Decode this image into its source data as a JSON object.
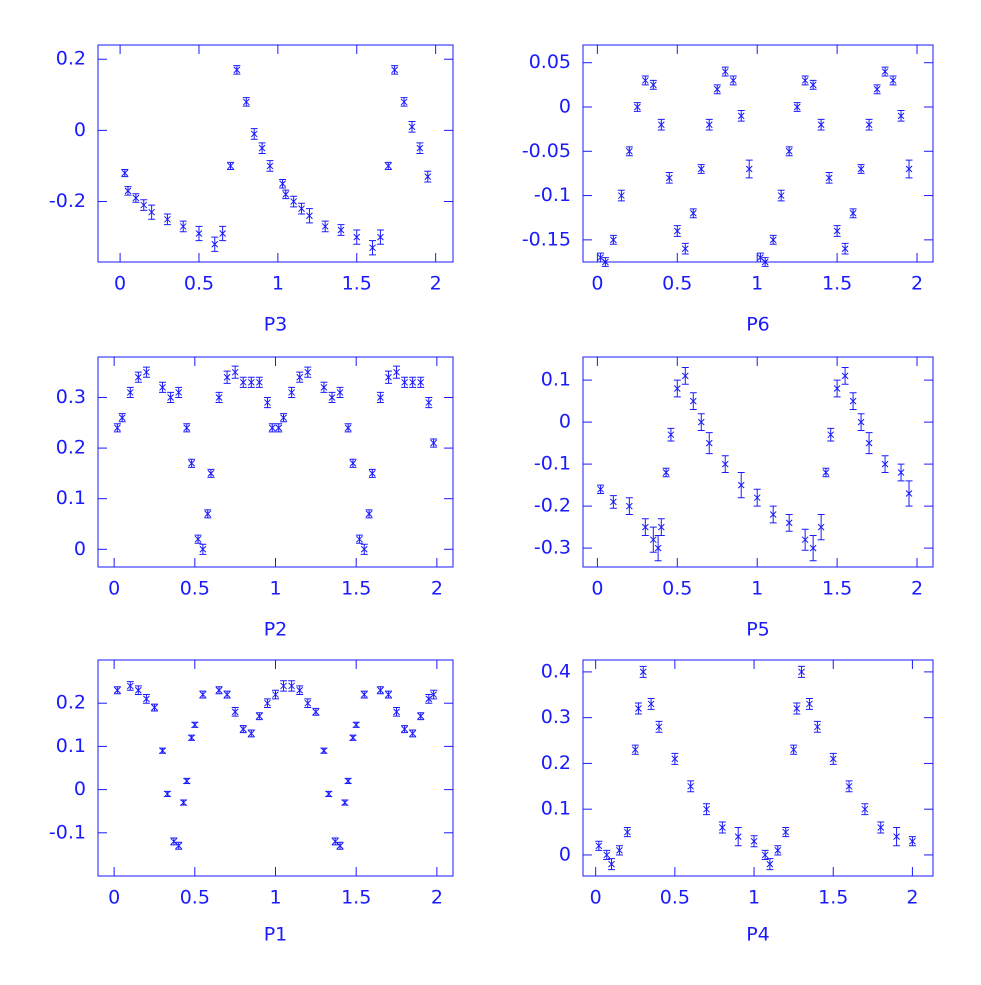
{
  "chart_data": [
    {
      "type": "scatter",
      "x_label": "P3",
      "color": "#1a1aff",
      "x": [
        0.03,
        0.05,
        0.1,
        0.15,
        0.2,
        0.3,
        0.4,
        0.5,
        0.6,
        0.65,
        0.7,
        0.74,
        0.8,
        0.85,
        0.9,
        0.95,
        1.03,
        1.05,
        1.1,
        1.15,
        1.2,
        1.3,
        1.4,
        1.5,
        1.6,
        1.65,
        1.7,
        1.74,
        1.8,
        1.85,
        1.9,
        1.95
      ],
      "values": [
        -0.12,
        -0.17,
        -0.19,
        -0.21,
        -0.23,
        -0.25,
        -0.27,
        -0.29,
        -0.32,
        -0.29,
        -0.1,
        0.17,
        0.08,
        -0.01,
        -0.05,
        -0.1,
        -0.15,
        -0.18,
        -0.2,
        -0.22,
        -0.24,
        -0.27,
        -0.28,
        -0.3,
        -0.33,
        -0.3,
        -0.1,
        0.17,
        0.08,
        0.01,
        -0.05,
        -0.13
      ],
      "errors": [
        0.01,
        0.012,
        0.012,
        0.015,
        0.02,
        0.015,
        0.015,
        0.02,
        0.02,
        0.02,
        0.01,
        0.012,
        0.012,
        0.015,
        0.015,
        0.015,
        0.012,
        0.012,
        0.015,
        0.015,
        0.02,
        0.015,
        0.015,
        0.02,
        0.02,
        0.02,
        0.01,
        0.012,
        0.012,
        0.015,
        0.015,
        0.015
      ],
      "xlim": [
        -0.14,
        2.11
      ],
      "ylim": [
        -0.37,
        0.24
      ],
      "xticks": [
        0,
        0.5,
        1,
        1.5,
        2
      ],
      "yticks": [
        -0.2,
        0,
        0.2
      ]
    },
    {
      "type": "scatter",
      "x_label": "P6",
      "color": "#1a1aff",
      "x": [
        0.02,
        0.05,
        0.1,
        0.15,
        0.2,
        0.25,
        0.3,
        0.35,
        0.4,
        0.45,
        0.5,
        0.55,
        0.6,
        0.65,
        0.7,
        0.75,
        0.8,
        0.85,
        0.9,
        0.95,
        1.02,
        1.05,
        1.1,
        1.15,
        1.2,
        1.25,
        1.3,
        1.35,
        1.4,
        1.45,
        1.5,
        1.55,
        1.6,
        1.65,
        1.7,
        1.75,
        1.8,
        1.85,
        1.9,
        1.95
      ],
      "values": [
        -0.17,
        -0.175,
        -0.15,
        -0.1,
        -0.05,
        0.0,
        0.03,
        0.025,
        -0.02,
        -0.08,
        -0.14,
        -0.16,
        -0.12,
        -0.07,
        -0.02,
        0.02,
        0.04,
        0.03,
        -0.01,
        -0.07,
        -0.17,
        -0.175,
        -0.15,
        -0.1,
        -0.05,
        0.0,
        0.03,
        0.025,
        -0.02,
        -0.08,
        -0.14,
        -0.16,
        -0.12,
        -0.07,
        -0.02,
        0.02,
        0.04,
        0.03,
        -0.01,
        -0.07
      ],
      "errors": [
        0.005,
        0.005,
        0.005,
        0.006,
        0.005,
        0.005,
        0.005,
        0.005,
        0.006,
        0.006,
        0.006,
        0.006,
        0.005,
        0.005,
        0.006,
        0.005,
        0.005,
        0.005,
        0.006,
        0.01,
        0.005,
        0.005,
        0.005,
        0.006,
        0.005,
        0.005,
        0.005,
        0.005,
        0.006,
        0.006,
        0.006,
        0.006,
        0.005,
        0.005,
        0.006,
        0.005,
        0.005,
        0.005,
        0.006,
        0.01
      ],
      "xlim": [
        -0.09,
        2.1
      ],
      "ylim": [
        -0.175,
        0.07
      ],
      "xticks": [
        0,
        0.5,
        1,
        1.5,
        2
      ],
      "yticks": [
        -0.15,
        -0.1,
        -0.05,
        0,
        0.05
      ]
    },
    {
      "type": "scatter",
      "x_label": "P2",
      "color": "#1a1aff",
      "x": [
        0.02,
        0.05,
        0.1,
        0.15,
        0.2,
        0.3,
        0.35,
        0.4,
        0.45,
        0.48,
        0.52,
        0.55,
        0.58,
        0.6,
        0.65,
        0.7,
        0.75,
        0.8,
        0.85,
        0.9,
        0.95,
        0.98,
        1.02,
        1.05,
        1.1,
        1.15,
        1.2,
        1.3,
        1.35,
        1.4,
        1.45,
        1.48,
        1.52,
        1.55,
        1.58,
        1.6,
        1.65,
        1.7,
        1.75,
        1.8,
        1.85,
        1.9,
        1.95,
        1.98
      ],
      "values": [
        0.24,
        0.26,
        0.31,
        0.34,
        0.35,
        0.32,
        0.3,
        0.31,
        0.24,
        0.17,
        0.02,
        0.0,
        0.07,
        0.15,
        0.3,
        0.34,
        0.35,
        0.33,
        0.33,
        0.33,
        0.29,
        0.24,
        0.24,
        0.26,
        0.31,
        0.34,
        0.35,
        0.32,
        0.3,
        0.31,
        0.24,
        0.17,
        0.02,
        0.0,
        0.07,
        0.15,
        0.3,
        0.34,
        0.35,
        0.33,
        0.33,
        0.33,
        0.29,
        0.21
      ],
      "errors": [
        0.008,
        0.008,
        0.01,
        0.01,
        0.01,
        0.01,
        0.01,
        0.01,
        0.008,
        0.008,
        0.008,
        0.01,
        0.008,
        0.008,
        0.01,
        0.012,
        0.012,
        0.01,
        0.01,
        0.01,
        0.01,
        0.008,
        0.008,
        0.008,
        0.01,
        0.01,
        0.01,
        0.01,
        0.01,
        0.01,
        0.008,
        0.008,
        0.008,
        0.01,
        0.008,
        0.008,
        0.01,
        0.012,
        0.012,
        0.01,
        0.01,
        0.01,
        0.01,
        0.008
      ],
      "xlim": [
        -0.1,
        2.1
      ],
      "ylim": [
        -0.035,
        0.38
      ],
      "xticks": [
        0,
        0.5,
        1,
        1.5,
        2
      ],
      "yticks": [
        0,
        0.1,
        0.2,
        0.3
      ]
    },
    {
      "type": "scatter",
      "x_label": "P5",
      "color": "#1a1aff",
      "x": [
        0.02,
        0.1,
        0.2,
        0.3,
        0.35,
        0.38,
        0.4,
        0.43,
        0.46,
        0.5,
        0.55,
        0.6,
        0.65,
        0.7,
        0.8,
        0.9,
        1.0,
        1.1,
        1.2,
        1.3,
        1.35,
        1.4,
        1.43,
        1.46,
        1.5,
        1.55,
        1.6,
        1.65,
        1.7,
        1.8,
        1.9,
        1.95
      ],
      "values": [
        -0.16,
        -0.19,
        -0.2,
        -0.25,
        -0.28,
        -0.3,
        -0.25,
        -0.12,
        -0.03,
        0.08,
        0.11,
        0.05,
        0.0,
        -0.05,
        -0.1,
        -0.15,
        -0.18,
        -0.22,
        -0.24,
        -0.28,
        -0.3,
        -0.25,
        -0.12,
        -0.03,
        0.08,
        0.11,
        0.05,
        0.0,
        -0.05,
        -0.1,
        -0.12,
        -0.17
      ],
      "errors": [
        0.01,
        0.015,
        0.02,
        0.02,
        0.03,
        0.03,
        0.02,
        0.01,
        0.015,
        0.02,
        0.02,
        0.02,
        0.02,
        0.025,
        0.02,
        0.03,
        0.02,
        0.02,
        0.02,
        0.025,
        0.03,
        0.03,
        0.01,
        0.015,
        0.02,
        0.02,
        0.02,
        0.02,
        0.025,
        0.02,
        0.02,
        0.03
      ],
      "xlim": [
        -0.09,
        2.1
      ],
      "ylim": [
        -0.345,
        0.155
      ],
      "xticks": [
        0,
        0.5,
        1,
        1.5,
        2
      ],
      "yticks": [
        -0.3,
        -0.2,
        -0.1,
        0,
        0.1
      ]
    },
    {
      "type": "scatter",
      "x_label": "P1",
      "color": "#1a1aff",
      "x": [
        0.02,
        0.1,
        0.15,
        0.2,
        0.25,
        0.3,
        0.33,
        0.37,
        0.4,
        0.43,
        0.45,
        0.48,
        0.5,
        0.55,
        0.65,
        0.7,
        0.75,
        0.8,
        0.85,
        0.9,
        0.95,
        1.0,
        1.05,
        1.1,
        1.15,
        1.2,
        1.25,
        1.3,
        1.33,
        1.37,
        1.4,
        1.43,
        1.45,
        1.48,
        1.5,
        1.55,
        1.65,
        1.7,
        1.75,
        1.8,
        1.85,
        1.9,
        1.95,
        1.98
      ],
      "values": [
        0.23,
        0.24,
        0.23,
        0.21,
        0.19,
        0.09,
        -0.01,
        -0.12,
        -0.13,
        -0.03,
        0.02,
        0.12,
        0.15,
        0.22,
        0.23,
        0.22,
        0.18,
        0.14,
        0.13,
        0.17,
        0.2,
        0.22,
        0.24,
        0.24,
        0.23,
        0.2,
        0.18,
        0.09,
        -0.01,
        -0.12,
        -0.13,
        -0.03,
        0.02,
        0.12,
        0.15,
        0.22,
        0.23,
        0.22,
        0.18,
        0.14,
        0.13,
        0.17,
        0.21,
        0.22
      ],
      "errors": [
        0.008,
        0.01,
        0.01,
        0.01,
        0.008,
        0.006,
        0.006,
        0.008,
        0.008,
        0.006,
        0.006,
        0.006,
        0.006,
        0.008,
        0.008,
        0.008,
        0.01,
        0.008,
        0.008,
        0.008,
        0.01,
        0.01,
        0.012,
        0.012,
        0.01,
        0.01,
        0.008,
        0.006,
        0.006,
        0.008,
        0.008,
        0.006,
        0.006,
        0.006,
        0.006,
        0.008,
        0.008,
        0.008,
        0.01,
        0.008,
        0.008,
        0.008,
        0.01,
        0.01
      ],
      "xlim": [
        -0.1,
        2.1
      ],
      "ylim": [
        -0.2,
        0.3
      ],
      "xticks": [
        0,
        0.5,
        1,
        1.5,
        2
      ],
      "yticks": [
        -0.1,
        0,
        0.1,
        0.2
      ]
    },
    {
      "type": "scatter",
      "x_label": "P4",
      "color": "#1a1aff",
      "x": [
        0.02,
        0.07,
        0.1,
        0.15,
        0.2,
        0.25,
        0.27,
        0.3,
        0.35,
        0.4,
        0.5,
        0.6,
        0.7,
        0.8,
        0.9,
        1.0,
        1.07,
        1.1,
        1.15,
        1.2,
        1.25,
        1.27,
        1.3,
        1.35,
        1.4,
        1.5,
        1.6,
        1.7,
        1.8,
        1.9,
        2.0
      ],
      "values": [
        0.02,
        0.0,
        -0.02,
        0.01,
        0.05,
        0.23,
        0.32,
        0.4,
        0.33,
        0.28,
        0.21,
        0.15,
        0.1,
        0.06,
        0.04,
        0.03,
        0.0,
        -0.02,
        0.01,
        0.05,
        0.23,
        0.32,
        0.4,
        0.33,
        0.28,
        0.21,
        0.15,
        0.1,
        0.06,
        0.04,
        0.03
      ],
      "errors": [
        0.01,
        0.01,
        0.012,
        0.01,
        0.01,
        0.01,
        0.012,
        0.012,
        0.012,
        0.012,
        0.012,
        0.012,
        0.012,
        0.012,
        0.02,
        0.012,
        0.01,
        0.012,
        0.01,
        0.01,
        0.01,
        0.012,
        0.012,
        0.012,
        0.012,
        0.012,
        0.012,
        0.012,
        0.012,
        0.02,
        0.01
      ],
      "xlim": [
        -0.08,
        2.13
      ],
      "ylim": [
        -0.046,
        0.426
      ],
      "xticks": [
        0,
        0.5,
        1,
        1.5,
        2
      ],
      "yticks": [
        0,
        0.1,
        0.2,
        0.3,
        0.4
      ]
    }
  ]
}
